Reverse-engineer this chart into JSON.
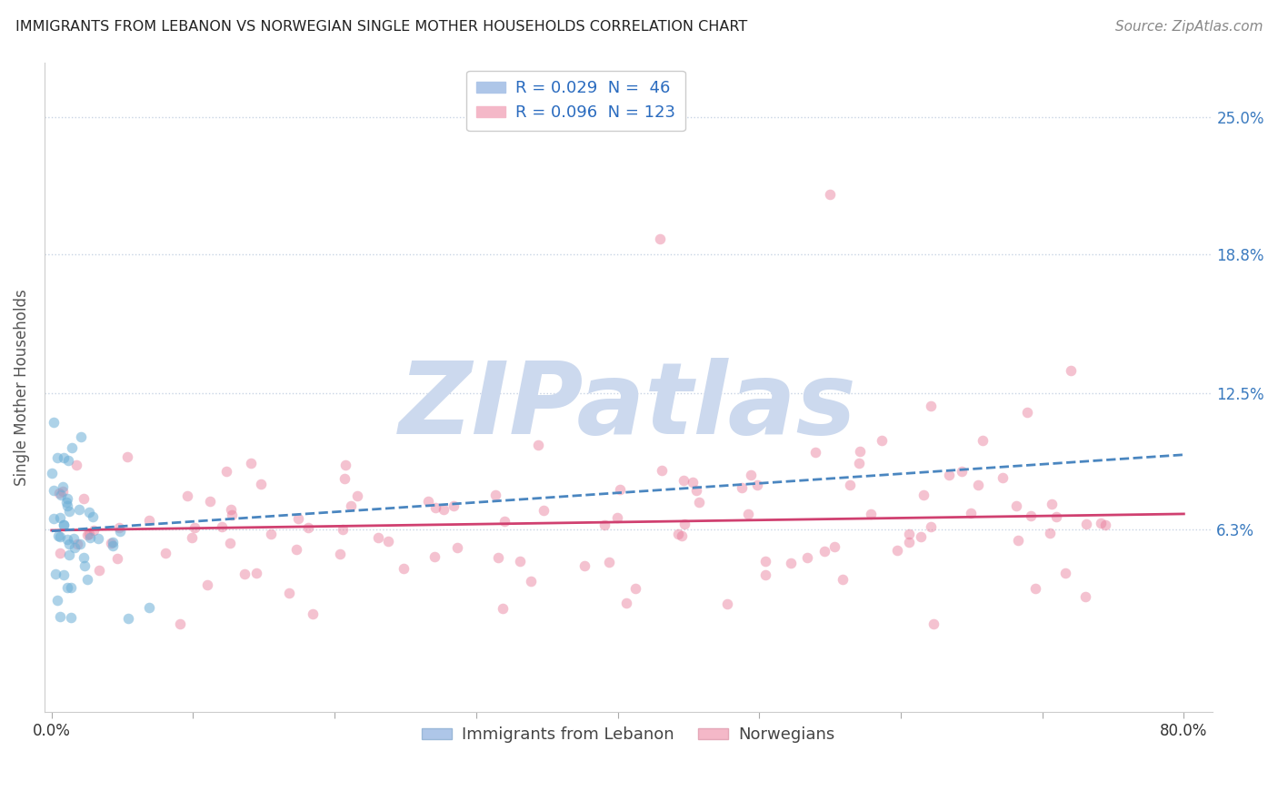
{
  "title": "IMMIGRANTS FROM LEBANON VS NORWEGIAN SINGLE MOTHER HOUSEHOLDS CORRELATION CHART",
  "source": "Source: ZipAtlas.com",
  "ylabel": "Single Mother Households",
  "xlim": [
    -0.005,
    0.82
  ],
  "ylim": [
    -0.02,
    0.275
  ],
  "ytick_vals": [
    0.063,
    0.125,
    0.188,
    0.25
  ],
  "ytick_labels": [
    "6.3%",
    "12.5%",
    "18.8%",
    "25.0%"
  ],
  "xtick_vals": [
    0.0,
    0.1,
    0.2,
    0.3,
    0.4,
    0.5,
    0.6,
    0.7,
    0.8
  ],
  "legend_entries": [
    {
      "label": "R = 0.029  N =  46",
      "color": "#aec6e8"
    },
    {
      "label": "R = 0.096  N = 123",
      "color": "#f4b8c8"
    }
  ],
  "watermark": "ZIPatlas",
  "watermark_color": "#ccd9ee",
  "series_blue": {
    "color": "#6baed6",
    "alpha": 0.55,
    "size": 70,
    "R": 0.029,
    "N": 46,
    "line_color": "#4a86c0",
    "line_style": "--"
  },
  "series_pink": {
    "color": "#e87898",
    "alpha": 0.45,
    "size": 70,
    "R": 0.096,
    "N": 123,
    "line_color": "#d04070",
    "line_style": "-"
  },
  "grid_color": "#c8d4e4",
  "grid_linestyle": ":",
  "background_color": "#ffffff",
  "title_fontsize": 11.5,
  "source_fontsize": 11,
  "tick_fontsize": 12,
  "ylabel_fontsize": 12,
  "legend_fontsize": 13
}
